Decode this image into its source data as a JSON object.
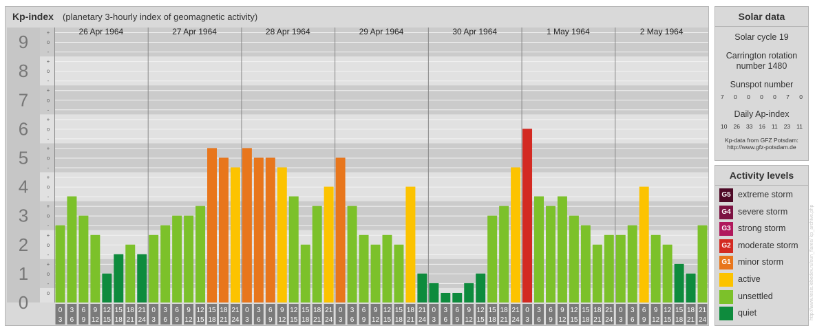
{
  "header": {
    "title": "Kp-index",
    "subtitle": "(planetary 3-hourly index of geomagnetic activity)"
  },
  "chart_data": {
    "type": "bar",
    "title": "Kp-index",
    "subtitle": "(planetary 3-hourly index of geomagnetic activity)",
    "y_axis_labels": [
      "0",
      "1",
      "2",
      "3",
      "4",
      "5",
      "6",
      "7",
      "8",
      "9"
    ],
    "y_minor_labels": [
      "+",
      "o",
      "-"
    ],
    "ylim": [
      0,
      9
    ],
    "days": [
      "26 Apr 1964",
      "27 Apr 1964",
      "28 Apr 1964",
      "29 Apr 1964",
      "30 Apr 1964",
      "1 May 1964",
      "2 May 1964"
    ],
    "x_ticks_top": [
      "0",
      "3",
      "6",
      "9",
      "12",
      "15",
      "18",
      "21"
    ],
    "x_ticks_bottom": [
      "3",
      "6",
      "9",
      "12",
      "15",
      "18",
      "21",
      "24"
    ],
    "values": [
      [
        2.667,
        3.667,
        3.0,
        2.333,
        1.0,
        1.667,
        2.0,
        1.667
      ],
      [
        2.333,
        2.667,
        3.0,
        3.0,
        3.333,
        5.333,
        5.0,
        4.667
      ],
      [
        5.333,
        5.0,
        5.0,
        4.667,
        3.667,
        2.0,
        3.333,
        4.0
      ],
      [
        5.0,
        3.333,
        2.333,
        2.0,
        2.333,
        2.0,
        4.0,
        1.0
      ],
      [
        0.667,
        0.333,
        0.333,
        0.667,
        1.0,
        3.0,
        3.333,
        4.667
      ],
      [
        6.0,
        3.667,
        3.333,
        3.667,
        3.0,
        2.667,
        2.0,
        2.333
      ],
      [
        2.333,
        2.667,
        4.0,
        2.333,
        2.0,
        1.333,
        1.0,
        2.667
      ]
    ],
    "colors": {
      "quiet": "#0e8b3d",
      "unsettled": "#7cc12a",
      "active": "#fcc300",
      "minor": "#e8761c",
      "moderate": "#d32a22",
      "strong": "#b0195c",
      "severe": "#7c1242",
      "extreme": "#4e0a27"
    },
    "grid": true
  },
  "solar": {
    "title": "Solar data",
    "cycle": "Solar cycle 19",
    "carrington_line1": "Carrington rotation",
    "carrington_line2": "number 1480",
    "sunspot_title": "Sunspot number",
    "sunspot_values": [
      "7",
      "0",
      "0",
      "0",
      "0",
      "7",
      "0"
    ],
    "ap_title": "Daily Ap-index",
    "ap_values": [
      "10",
      "26",
      "33",
      "16",
      "11",
      "23",
      "11"
    ],
    "credit_line1": "Kp-data from GFZ Potsdam:",
    "credit_line2": "http://www.gfz-potsdam.de"
  },
  "activity": {
    "title": "Activity levels",
    "items": [
      {
        "badge": "G5",
        "label": "extreme storm",
        "color": "#4e0a27"
      },
      {
        "badge": "G4",
        "label": "severe storm",
        "color": "#7c1242"
      },
      {
        "badge": "G3",
        "label": "strong storm",
        "color": "#b0195c"
      },
      {
        "badge": "G2",
        "label": "moderate storm",
        "color": "#d32a22"
      },
      {
        "badge": "G1",
        "label": "minor storm",
        "color": "#e8761c"
      },
      {
        "badge": "",
        "label": "active",
        "color": "#fcc300"
      },
      {
        "badge": "",
        "label": "unsettled",
        "color": "#7cc12a"
      },
      {
        "badge": "",
        "label": "quiet",
        "color": "#0e8b3d"
      }
    ]
  },
  "watermark": "http://www.tesis.lebedev.ru/sun_flares/ kp_archive.php"
}
